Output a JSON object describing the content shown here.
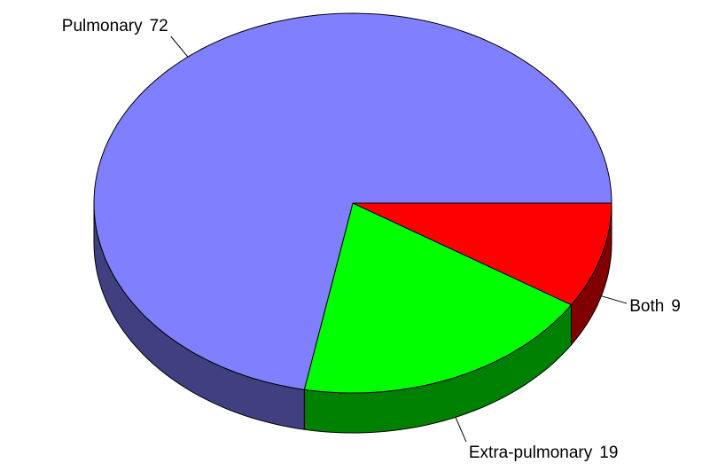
{
  "chart_data": {
    "type": "pie",
    "categories": [
      "Both",
      "Extra-pulmonary",
      "Pulmonary"
    ],
    "values": [
      9,
      19,
      72
    ],
    "colors": [
      "#ff0000",
      "#00ff00",
      "#8080ff"
    ]
  }
}
